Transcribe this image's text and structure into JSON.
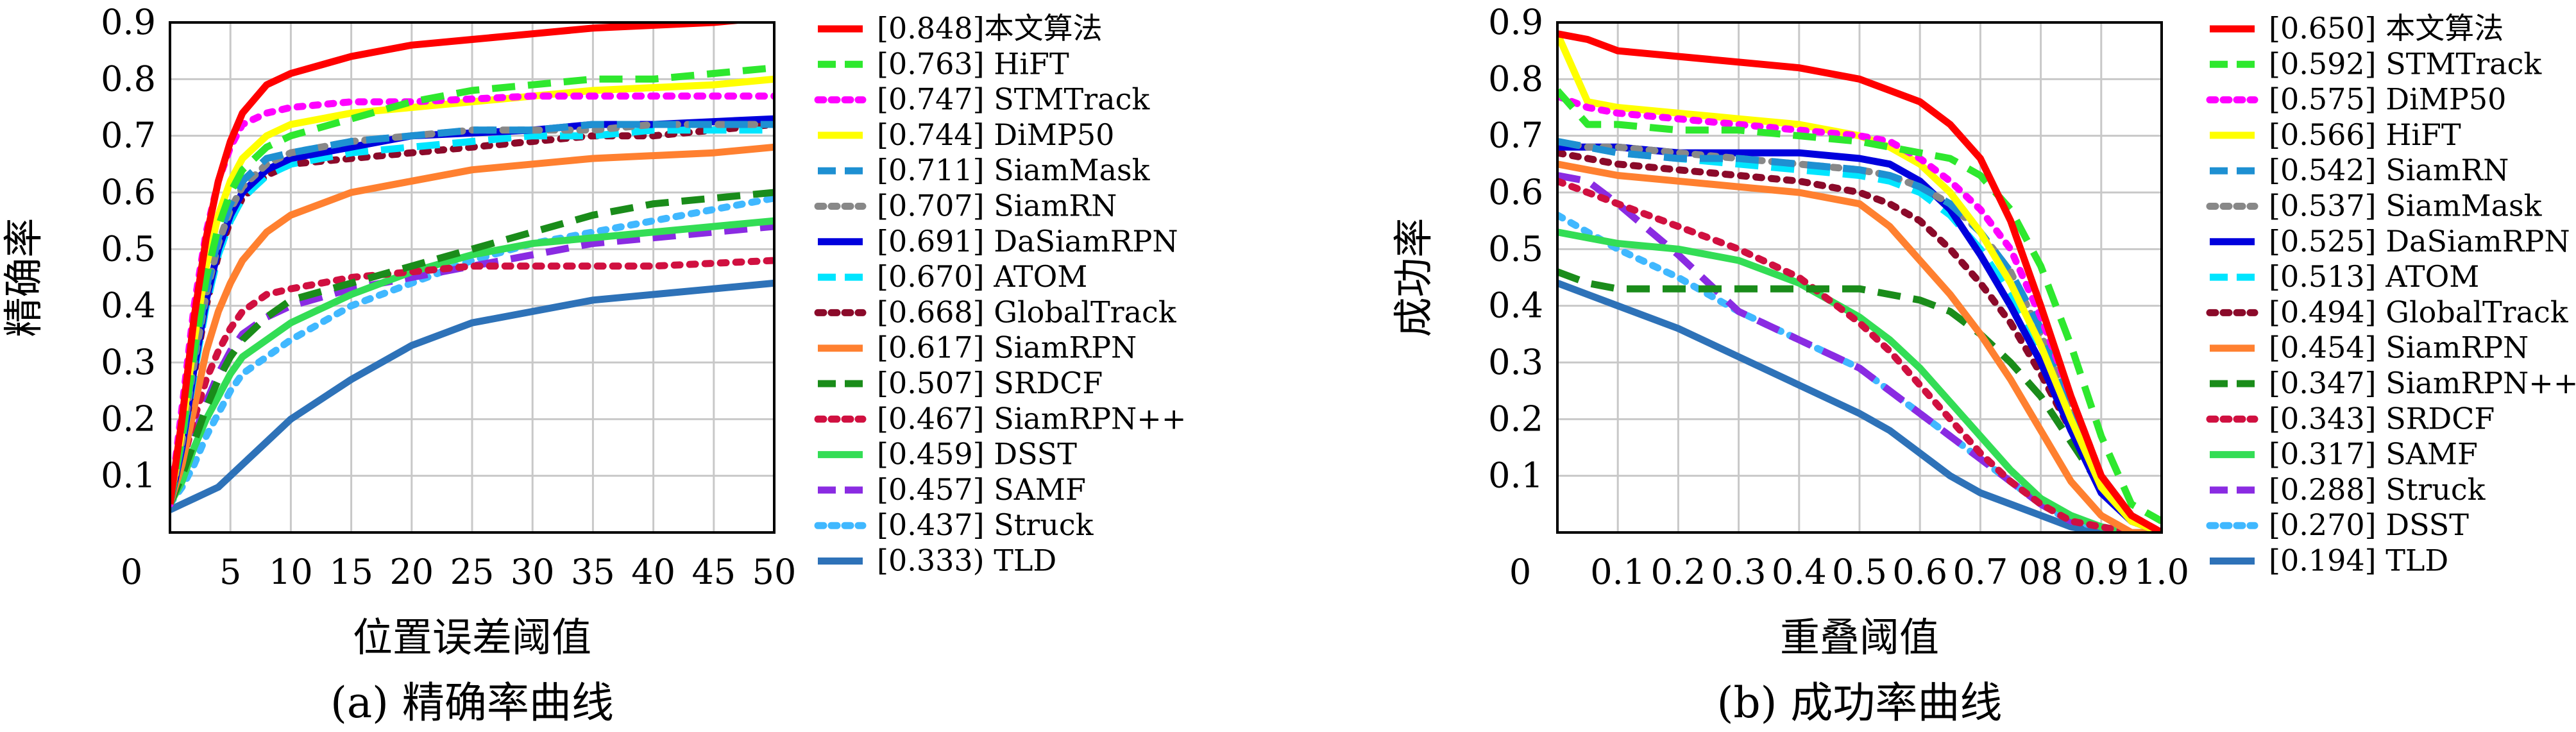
{
  "figure": {
    "charts": [
      {
        "caption": "(a) 精确率曲线",
        "xlabel": "位置误差阈值",
        "ylabel": "精确率",
        "origin_label": "0",
        "xticks": [
          "5",
          "10",
          "15",
          "20",
          "25",
          "30",
          "35",
          "40",
          "45",
          "50"
        ],
        "yticks": [
          "0.1",
          "0.2",
          "0.3",
          "0.4",
          "0.5",
          "0.6",
          "0.7",
          "0.8",
          "0.9"
        ],
        "legend": [
          "[0.848]本文算法",
          "[0.763]  HiFT",
          "[0.747]  STMTrack",
          "[0.744]  DiMP50",
          "[0.711]  SiamMask",
          "[0.707]  SiamRN",
          "[0.691]  DaSiamRPN",
          "[0.670]  ATOM",
          "[0.668]  GlobalTrack",
          "[0.617]  SiamRPN",
          "[0.507]  SRDCF",
          "[0.467]  SiamRPN++",
          "[0.459]  DSST",
          "[0.457]  SAMF",
          "[0.437]  Struck",
          "[0.333)  TLD"
        ]
      },
      {
        "caption": "(b) 成功率曲线",
        "xlabel": "重叠阈值",
        "ylabel": "成功率",
        "origin_label": "0",
        "xticks": [
          "0.1",
          "0.2",
          "0.3",
          "0.4",
          "0.5",
          "0.6",
          "0.7",
          "08",
          "0.9",
          "1.0"
        ],
        "yticks": [
          "0.1",
          "0.2",
          "0.3",
          "0.4",
          "0.5",
          "0.6",
          "0.7",
          "0.8",
          "0.9"
        ],
        "legend": [
          "[0.650]  本文算法",
          "[0.592]  STMTrack",
          "[0.575]  DiMP50",
          "[0.566]  HiFT",
          "[0.542]  SiamRN",
          "[0.537]  SiamMask",
          "[0.525]  DaSiamRPN",
          "[0.513]  ATOM",
          "[0.494]  GlobalTrack",
          "[0.454]  SiamRPN",
          "[0.347]  SiamRPN++",
          "[0.343]  SRDCF",
          "[0.317]  SAMF",
          "[0.288]  Struck",
          "[0.270]  DSST",
          "[0.194]  TLD"
        ]
      }
    ]
  },
  "chart_data": [
    {
      "type": "line",
      "xlim": [
        0,
        50
      ],
      "ylim": [
        0,
        0.9
      ],
      "grid": true,
      "legend_position": "right",
      "x": [
        0,
        1,
        2,
        3,
        4,
        5,
        6,
        8,
        10,
        15,
        20,
        25,
        30,
        35,
        40,
        45,
        50
      ],
      "series": [
        {
          "name": "本文算法",
          "score": 0.848,
          "color": "#ff0000",
          "dash": "solid",
          "values": [
            0.05,
            0.2,
            0.38,
            0.52,
            0.62,
            0.69,
            0.74,
            0.79,
            0.81,
            0.84,
            0.86,
            0.87,
            0.88,
            0.89,
            0.895,
            0.9,
            0.91
          ]
        },
        {
          "name": "HiFT",
          "score": 0.763,
          "color": "#2ee82e",
          "dash": "dash",
          "values": [
            0.05,
            0.17,
            0.32,
            0.45,
            0.54,
            0.6,
            0.64,
            0.68,
            0.7,
            0.73,
            0.76,
            0.78,
            0.79,
            0.8,
            0.8,
            0.81,
            0.82
          ]
        },
        {
          "name": "STMTrack",
          "score": 0.747,
          "color": "#ff00ff",
          "dash": "dot",
          "values": [
            0.05,
            0.22,
            0.4,
            0.53,
            0.62,
            0.68,
            0.72,
            0.74,
            0.75,
            0.76,
            0.76,
            0.765,
            0.77,
            0.77,
            0.77,
            0.77,
            0.77
          ]
        },
        {
          "name": "DiMP50",
          "score": 0.744,
          "color": "#ffff00",
          "dash": "solid",
          "values": [
            0.05,
            0.18,
            0.34,
            0.47,
            0.56,
            0.62,
            0.66,
            0.7,
            0.72,
            0.74,
            0.75,
            0.76,
            0.77,
            0.78,
            0.785,
            0.79,
            0.8
          ]
        },
        {
          "name": "SiamMask",
          "score": 0.711,
          "color": "#1e90d2",
          "dash": "dash",
          "values": [
            0.05,
            0.16,
            0.31,
            0.43,
            0.52,
            0.58,
            0.62,
            0.66,
            0.67,
            0.69,
            0.7,
            0.71,
            0.71,
            0.72,
            0.72,
            0.72,
            0.72
          ]
        },
        {
          "name": "SiamRN",
          "score": 0.707,
          "color": "#888888",
          "dash": "dot",
          "values": [
            0.05,
            0.16,
            0.3,
            0.42,
            0.51,
            0.57,
            0.61,
            0.65,
            0.67,
            0.69,
            0.7,
            0.71,
            0.71,
            0.71,
            0.72,
            0.72,
            0.72
          ]
        },
        {
          "name": "DaSiamRPN",
          "score": 0.691,
          "color": "#0000dd",
          "dash": "solid",
          "values": [
            0.05,
            0.15,
            0.29,
            0.41,
            0.5,
            0.56,
            0.6,
            0.64,
            0.66,
            0.68,
            0.7,
            0.705,
            0.71,
            0.72,
            0.72,
            0.725,
            0.73
          ]
        },
        {
          "name": "ATOM",
          "score": 0.67,
          "color": "#00e5ff",
          "dash": "dash",
          "values": [
            0.05,
            0.15,
            0.28,
            0.4,
            0.49,
            0.55,
            0.59,
            0.63,
            0.65,
            0.67,
            0.68,
            0.69,
            0.7,
            0.7,
            0.71,
            0.71,
            0.71
          ]
        },
        {
          "name": "GlobalTrack",
          "score": 0.668,
          "color": "#8b0a2a",
          "dash": "dot",
          "values": [
            0.05,
            0.15,
            0.28,
            0.4,
            0.49,
            0.55,
            0.59,
            0.63,
            0.65,
            0.66,
            0.67,
            0.68,
            0.69,
            0.7,
            0.7,
            0.71,
            0.72
          ]
        },
        {
          "name": "SiamRPN",
          "score": 0.617,
          "color": "#ff8030",
          "dash": "solid",
          "values": [
            0.05,
            0.12,
            0.22,
            0.32,
            0.39,
            0.44,
            0.48,
            0.53,
            0.56,
            0.6,
            0.62,
            0.64,
            0.65,
            0.66,
            0.665,
            0.67,
            0.68
          ]
        },
        {
          "name": "SRDCF",
          "score": 0.507,
          "color": "#1a8c1a",
          "dash": "dash",
          "values": [
            0.05,
            0.1,
            0.16,
            0.22,
            0.27,
            0.31,
            0.34,
            0.38,
            0.41,
            0.44,
            0.47,
            0.5,
            0.53,
            0.56,
            0.58,
            0.59,
            0.6
          ]
        },
        {
          "name": "SiamRPN++",
          "score": 0.467,
          "color": "#d01040",
          "dash": "dot",
          "values": [
            0.05,
            0.12,
            0.2,
            0.27,
            0.32,
            0.36,
            0.39,
            0.42,
            0.43,
            0.45,
            0.46,
            0.47,
            0.47,
            0.47,
            0.47,
            0.475,
            0.48
          ]
        },
        {
          "name": "DSST",
          "score": 0.459,
          "color": "#33dd55",
          "dash": "solid",
          "values": [
            0.05,
            0.09,
            0.15,
            0.2,
            0.24,
            0.28,
            0.31,
            0.34,
            0.37,
            0.42,
            0.46,
            0.49,
            0.51,
            0.52,
            0.53,
            0.54,
            0.55
          ]
        },
        {
          "name": "SAMF",
          "score": 0.457,
          "color": "#8a2be2",
          "dash": "dash",
          "values": [
            0.05,
            0.1,
            0.17,
            0.23,
            0.28,
            0.32,
            0.35,
            0.38,
            0.4,
            0.43,
            0.45,
            0.47,
            0.49,
            0.51,
            0.52,
            0.53,
            0.54
          ]
        },
        {
          "name": "Struck",
          "score": 0.437,
          "color": "#40b8ff",
          "dash": "dot",
          "values": [
            0.05,
            0.08,
            0.12,
            0.17,
            0.21,
            0.25,
            0.28,
            0.31,
            0.34,
            0.4,
            0.44,
            0.48,
            0.51,
            0.53,
            0.55,
            0.57,
            0.59
          ]
        },
        {
          "name": "TLD",
          "score": 0.333,
          "color": "#2e72b8",
          "dash": "solid",
          "values": [
            0.04,
            0.05,
            0.06,
            0.07,
            0.08,
            0.1,
            0.12,
            0.16,
            0.2,
            0.27,
            0.33,
            0.37,
            0.39,
            0.41,
            0.42,
            0.43,
            0.44
          ]
        }
      ]
    },
    {
      "type": "line",
      "xlim": [
        0,
        1.0
      ],
      "ylim": [
        0,
        0.9
      ],
      "grid": true,
      "legend_position": "right",
      "x": [
        0,
        0.05,
        0.1,
        0.2,
        0.3,
        0.4,
        0.5,
        0.55,
        0.6,
        0.65,
        0.7,
        0.75,
        0.8,
        0.85,
        0.9,
        0.95,
        1.0
      ],
      "series": [
        {
          "name": "本文算法",
          "score": 0.65,
          "color": "#ff0000",
          "dash": "solid",
          "values": [
            0.88,
            0.87,
            0.85,
            0.84,
            0.83,
            0.82,
            0.8,
            0.78,
            0.76,
            0.72,
            0.66,
            0.55,
            0.4,
            0.24,
            0.1,
            0.03,
            0.0
          ]
        },
        {
          "name": "STMTrack",
          "score": 0.592,
          "color": "#2ee82e",
          "dash": "dash",
          "values": [
            0.78,
            0.72,
            0.72,
            0.71,
            0.71,
            0.7,
            0.69,
            0.68,
            0.67,
            0.66,
            0.63,
            0.57,
            0.47,
            0.33,
            0.17,
            0.05,
            0.02
          ]
        },
        {
          "name": "DiMP50",
          "score": 0.575,
          "color": "#ff00ff",
          "dash": "dot",
          "values": [
            0.77,
            0.75,
            0.74,
            0.73,
            0.72,
            0.71,
            0.7,
            0.69,
            0.66,
            0.62,
            0.57,
            0.5,
            0.38,
            0.24,
            0.1,
            0.03,
            0.0
          ]
        },
        {
          "name": "HiFT",
          "score": 0.566,
          "color": "#ffff00",
          "dash": "solid",
          "values": [
            0.88,
            0.76,
            0.75,
            0.74,
            0.73,
            0.72,
            0.7,
            0.68,
            0.65,
            0.6,
            0.53,
            0.44,
            0.33,
            0.2,
            0.08,
            0.02,
            0.0
          ]
        },
        {
          "name": "SiamRN",
          "score": 0.542,
          "color": "#1e90d2",
          "dash": "dash",
          "values": [
            0.69,
            0.68,
            0.67,
            0.66,
            0.66,
            0.65,
            0.64,
            0.63,
            0.61,
            0.58,
            0.53,
            0.46,
            0.36,
            0.23,
            0.1,
            0.03,
            0.0
          ]
        },
        {
          "name": "SiamMask",
          "score": 0.537,
          "color": "#888888",
          "dash": "dot",
          "values": [
            0.69,
            0.68,
            0.68,
            0.67,
            0.66,
            0.65,
            0.64,
            0.63,
            0.61,
            0.58,
            0.53,
            0.46,
            0.35,
            0.22,
            0.09,
            0.02,
            0.0
          ]
        },
        {
          "name": "DaSiamRPN",
          "score": 0.525,
          "color": "#0000dd",
          "dash": "solid",
          "values": [
            0.68,
            0.68,
            0.68,
            0.67,
            0.67,
            0.67,
            0.66,
            0.65,
            0.62,
            0.57,
            0.49,
            0.4,
            0.3,
            0.18,
            0.07,
            0.02,
            0.0
          ]
        },
        {
          "name": "ATOM",
          "score": 0.513,
          "color": "#00e5ff",
          "dash": "dash",
          "values": [
            0.69,
            0.68,
            0.67,
            0.66,
            0.65,
            0.64,
            0.63,
            0.62,
            0.6,
            0.56,
            0.5,
            0.42,
            0.32,
            0.2,
            0.08,
            0.02,
            0.0
          ]
        },
        {
          "name": "GlobalTrack",
          "score": 0.494,
          "color": "#8b0a2a",
          "dash": "dot",
          "values": [
            0.67,
            0.66,
            0.65,
            0.64,
            0.63,
            0.62,
            0.6,
            0.58,
            0.55,
            0.5,
            0.44,
            0.37,
            0.28,
            0.18,
            0.08,
            0.02,
            0.0
          ]
        },
        {
          "name": "SiamRPN",
          "score": 0.454,
          "color": "#ff8030",
          "dash": "solid",
          "values": [
            0.65,
            0.64,
            0.63,
            0.62,
            0.61,
            0.6,
            0.58,
            0.54,
            0.48,
            0.42,
            0.35,
            0.27,
            0.18,
            0.09,
            0.03,
            0.0,
            0.0
          ]
        },
        {
          "name": "SiamRPN++",
          "score": 0.347,
          "color": "#1a8c1a",
          "dash": "dash",
          "values": [
            0.46,
            0.44,
            0.43,
            0.43,
            0.43,
            0.43,
            0.43,
            0.42,
            0.41,
            0.39,
            0.35,
            0.3,
            0.24,
            0.16,
            0.08,
            0.02,
            0.0
          ]
        },
        {
          "name": "SRDCF",
          "score": 0.343,
          "color": "#d01040",
          "dash": "dot",
          "values": [
            0.62,
            0.6,
            0.58,
            0.54,
            0.5,
            0.45,
            0.37,
            0.32,
            0.26,
            0.2,
            0.14,
            0.09,
            0.05,
            0.02,
            0.01,
            0.0,
            0.0
          ]
        },
        {
          "name": "SAMF",
          "score": 0.317,
          "color": "#33dd55",
          "dash": "solid",
          "values": [
            0.53,
            0.52,
            0.51,
            0.5,
            0.48,
            0.44,
            0.38,
            0.34,
            0.29,
            0.23,
            0.17,
            0.11,
            0.06,
            0.03,
            0.01,
            0.0,
            0.0
          ]
        },
        {
          "name": "Struck",
          "score": 0.288,
          "color": "#8a2be2",
          "dash": "dash",
          "values": [
            0.63,
            0.62,
            0.58,
            0.49,
            0.39,
            0.34,
            0.29,
            0.25,
            0.21,
            0.17,
            0.13,
            0.09,
            0.05,
            0.02,
            0.01,
            0.0,
            0.0
          ]
        },
        {
          "name": "DSST",
          "score": 0.27,
          "color": "#40b8ff",
          "dash": "dot",
          "values": [
            0.56,
            0.53,
            0.5,
            0.45,
            0.39,
            0.34,
            0.29,
            0.25,
            0.21,
            0.17,
            0.13,
            0.09,
            0.05,
            0.02,
            0.01,
            0.0,
            0.0
          ]
        },
        {
          "name": "TLD",
          "score": 0.194,
          "color": "#2e72b8",
          "dash": "solid",
          "values": [
            0.44,
            0.42,
            0.4,
            0.36,
            0.31,
            0.26,
            0.21,
            0.18,
            0.14,
            0.1,
            0.07,
            0.05,
            0.03,
            0.01,
            0.0,
            0.0,
            0.0
          ]
        }
      ]
    }
  ]
}
